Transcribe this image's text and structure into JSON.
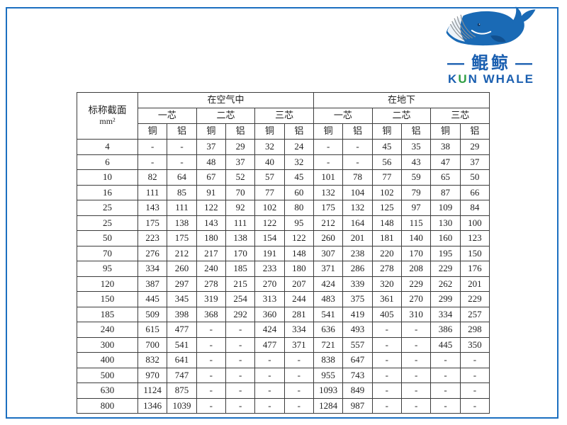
{
  "page": {
    "frame_color": "#1b6fc0",
    "background": "#ffffff"
  },
  "logo": {
    "whale_icon": "blue-whale",
    "dash_left": "—",
    "dash_right": "—",
    "brand_cn": "鲲鲸",
    "brand_en_k": "K",
    "brand_en_u": "U",
    "brand_en_rest": "N WHALE",
    "blue": "#1a5fb0",
    "green": "#2f9e44"
  },
  "table": {
    "corner_line1": "标称截面",
    "corner_line2": "mm²",
    "env_headers": [
      "在空气中",
      "在地下"
    ],
    "core_headers": [
      "一芯",
      "二芯",
      "三芯"
    ],
    "material_headers": [
      "铜",
      "铝"
    ],
    "rows": [
      {
        "size": "4",
        "values": [
          "-",
          "-",
          "37",
          "29",
          "32",
          "24",
          "-",
          "-",
          "45",
          "35",
          "38",
          "29"
        ]
      },
      {
        "size": "6",
        "values": [
          "-",
          "-",
          "48",
          "37",
          "40",
          "32",
          "-",
          "-",
          "56",
          "43",
          "47",
          "37"
        ]
      },
      {
        "size": "10",
        "values": [
          "82",
          "64",
          "67",
          "52",
          "57",
          "45",
          "101",
          "78",
          "77",
          "59",
          "65",
          "50"
        ]
      },
      {
        "size": "16",
        "values": [
          "111",
          "85",
          "91",
          "70",
          "77",
          "60",
          "132",
          "104",
          "102",
          "79",
          "87",
          "66"
        ]
      },
      {
        "size": "25",
        "values": [
          "143",
          "111",
          "122",
          "92",
          "102",
          "80",
          "175",
          "132",
          "125",
          "97",
          "109",
          "84"
        ]
      },
      {
        "size": "25",
        "values": [
          "175",
          "138",
          "143",
          "111",
          "122",
          "95",
          "212",
          "164",
          "148",
          "115",
          "130",
          "100"
        ]
      },
      {
        "size": "50",
        "values": [
          "223",
          "175",
          "180",
          "138",
          "154",
          "122",
          "260",
          "201",
          "181",
          "140",
          "160",
          "123"
        ]
      },
      {
        "size": "70",
        "values": [
          "276",
          "212",
          "217",
          "170",
          "191",
          "148",
          "307",
          "238",
          "220",
          "170",
          "195",
          "150"
        ]
      },
      {
        "size": "95",
        "values": [
          "334",
          "260",
          "240",
          "185",
          "233",
          "180",
          "371",
          "286",
          "278",
          "208",
          "229",
          "176"
        ]
      },
      {
        "size": "120",
        "values": [
          "387",
          "297",
          "278",
          "215",
          "270",
          "207",
          "424",
          "339",
          "320",
          "229",
          "262",
          "201"
        ]
      },
      {
        "size": "150",
        "values": [
          "445",
          "345",
          "319",
          "254",
          "313",
          "244",
          "483",
          "375",
          "361",
          "270",
          "299",
          "229"
        ]
      },
      {
        "size": "185",
        "values": [
          "509",
          "398",
          "368",
          "292",
          "360",
          "281",
          "541",
          "419",
          "405",
          "310",
          "334",
          "257"
        ]
      },
      {
        "size": "240",
        "values": [
          "615",
          "477",
          "-",
          "-",
          "424",
          "334",
          "636",
          "493",
          "-",
          "-",
          "386",
          "298"
        ]
      },
      {
        "size": "300",
        "values": [
          "700",
          "541",
          "-",
          "-",
          "477",
          "371",
          "721",
          "557",
          "-",
          "-",
          "445",
          "350"
        ]
      },
      {
        "size": "400",
        "values": [
          "832",
          "641",
          "-",
          "-",
          "-",
          "-",
          "838",
          "647",
          "-",
          "-",
          "-",
          "-"
        ]
      },
      {
        "size": "500",
        "values": [
          "970",
          "747",
          "-",
          "-",
          "-",
          "-",
          "955",
          "743",
          "-",
          "-",
          "-",
          "-"
        ]
      },
      {
        "size": "630",
        "values": [
          "1124",
          "875",
          "-",
          "-",
          "-",
          "-",
          "1093",
          "849",
          "-",
          "-",
          "-",
          "-"
        ]
      },
      {
        "size": "800",
        "values": [
          "1346",
          "1039",
          "-",
          "-",
          "-",
          "-",
          "1284",
          "987",
          "-",
          "-",
          "-",
          "-"
        ]
      }
    ]
  }
}
